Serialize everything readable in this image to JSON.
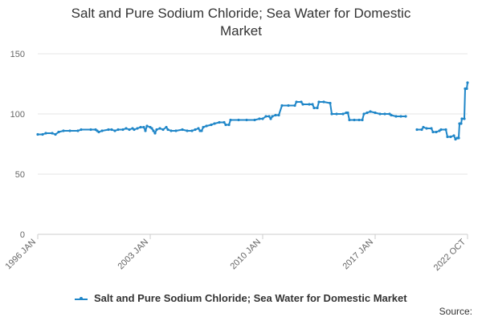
{
  "chart_data": {
    "type": "line",
    "title_lines": [
      "Salt and Pure Sodium Chloride; Sea Water for Domestic",
      "Market"
    ],
    "xlabel": "",
    "ylabel": "",
    "ylim": [
      0,
      150
    ],
    "y_ticks": [
      0,
      50,
      100,
      150
    ],
    "x_range": [
      1996.0,
      2022.75
    ],
    "x_ticks": [
      {
        "value": 1996.0,
        "label": "1996 JAN"
      },
      {
        "value": 2003.0,
        "label": "2003 JAN"
      },
      {
        "value": 2010.0,
        "label": "2010 JAN"
      },
      {
        "value": 2017.0,
        "label": "2017 JAN"
      },
      {
        "value": 2022.75,
        "label": "2022 OCT"
      }
    ],
    "grid": "horizontal",
    "legend_position": "bottom",
    "series": [
      {
        "name": "Salt and Pure Sodium Chloride; Sea Water for Domestic Market",
        "color": "#1f86c8",
        "segments": [
          [
            [
              1996.0,
              83
            ],
            [
              1996.3,
              83
            ],
            [
              1996.5,
              84
            ],
            [
              1996.9,
              84
            ],
            [
              1997.1,
              83
            ],
            [
              1997.3,
              85
            ],
            [
              1997.6,
              86
            ],
            [
              1998.0,
              86
            ],
            [
              1998.5,
              86
            ],
            [
              1998.7,
              87
            ],
            [
              1999.3,
              87
            ],
            [
              1999.6,
              87
            ],
            [
              1999.7,
              86
            ],
            [
              1999.8,
              85
            ],
            [
              2000.0,
              86
            ],
            [
              2000.4,
              87
            ],
            [
              2000.6,
              87
            ],
            [
              2000.8,
              86
            ],
            [
              2001.0,
              87
            ],
            [
              2001.3,
              87
            ],
            [
              2001.5,
              88
            ],
            [
              2001.7,
              87
            ],
            [
              2001.9,
              88
            ],
            [
              2002.0,
              87
            ],
            [
              2002.2,
              88
            ],
            [
              2002.4,
              89
            ],
            [
              2002.6,
              89
            ],
            [
              2002.7,
              86
            ],
            [
              2002.8,
              90
            ],
            [
              2003.0,
              89
            ],
            [
              2003.1,
              88
            ],
            [
              2003.2,
              86
            ],
            [
              2003.3,
              84
            ],
            [
              2003.4,
              87
            ],
            [
              2003.6,
              88
            ],
            [
              2003.8,
              87
            ],
            [
              2004.0,
              89
            ],
            [
              2004.1,
              87
            ],
            [
              2004.3,
              86
            ],
            [
              2004.6,
              86
            ],
            [
              2005.0,
              87
            ],
            [
              2005.3,
              86
            ],
            [
              2005.6,
              86
            ],
            [
              2005.8,
              87
            ],
            [
              2006.0,
              88
            ],
            [
              2006.1,
              86
            ],
            [
              2006.2,
              86
            ],
            [
              2006.3,
              89
            ],
            [
              2006.5,
              90
            ],
            [
              2006.8,
              91
            ],
            [
              2007.0,
              92
            ],
            [
              2007.3,
              93
            ],
            [
              2007.6,
              93
            ],
            [
              2007.7,
              91
            ],
            [
              2007.9,
              91
            ],
            [
              2008.0,
              95
            ],
            [
              2008.5,
              95
            ],
            [
              2009.0,
              95
            ],
            [
              2009.5,
              95
            ],
            [
              2009.8,
              96
            ],
            [
              2010.0,
              96
            ],
            [
              2010.2,
              98
            ],
            [
              2010.4,
              98
            ],
            [
              2010.5,
              96
            ],
            [
              2010.6,
              98
            ],
            [
              2010.8,
              99
            ],
            [
              2011.0,
              99
            ],
            [
              2011.2,
              107
            ],
            [
              2011.6,
              107
            ],
            [
              2012.0,
              107
            ],
            [
              2012.1,
              110
            ],
            [
              2012.4,
              110
            ],
            [
              2012.5,
              108
            ],
            [
              2012.9,
              108
            ],
            [
              2013.1,
              108
            ],
            [
              2013.2,
              105
            ],
            [
              2013.4,
              105
            ],
            [
              2013.5,
              110
            ],
            [
              2013.8,
              110
            ],
            [
              2014.2,
              109
            ],
            [
              2014.3,
              100
            ],
            [
              2014.6,
              100
            ],
            [
              2015.0,
              100
            ],
            [
              2015.2,
              101
            ],
            [
              2015.3,
              101
            ],
            [
              2015.4,
              95
            ],
            [
              2015.7,
              95
            ],
            [
              2016.0,
              95
            ],
            [
              2016.2,
              95
            ],
            [
              2016.3,
              100
            ],
            [
              2016.5,
              101
            ],
            [
              2016.7,
              102
            ],
            [
              2017.0,
              101
            ],
            [
              2017.3,
              100
            ],
            [
              2017.6,
              100
            ],
            [
              2017.9,
              100
            ],
            [
              2018.0,
              99
            ],
            [
              2018.3,
              98
            ],
            [
              2018.6,
              98
            ],
            [
              2018.9,
              98
            ]
          ],
          [
            [
              2019.6,
              87
            ],
            [
              2019.9,
              87
            ],
            [
              2020.0,
              89
            ],
            [
              2020.2,
              88
            ],
            [
              2020.5,
              88
            ],
            [
              2020.6,
              85
            ],
            [
              2020.8,
              85
            ],
            [
              2021.0,
              86
            ],
            [
              2021.1,
              87
            ],
            [
              2021.4,
              87
            ],
            [
              2021.5,
              81
            ],
            [
              2021.7,
              81
            ],
            [
              2021.9,
              82
            ],
            [
              2022.0,
              79
            ],
            [
              2022.1,
              80
            ],
            [
              2022.2,
              80
            ],
            [
              2022.25,
              92
            ],
            [
              2022.35,
              92
            ],
            [
              2022.4,
              96
            ],
            [
              2022.55,
              96
            ],
            [
              2022.6,
              121
            ],
            [
              2022.7,
              121
            ],
            [
              2022.75,
              126
            ]
          ]
        ]
      }
    ]
  },
  "legend": {
    "label": "Salt and Pure Sodium Chloride; Sea Water for Domestic Market"
  },
  "source_label": "Source:"
}
